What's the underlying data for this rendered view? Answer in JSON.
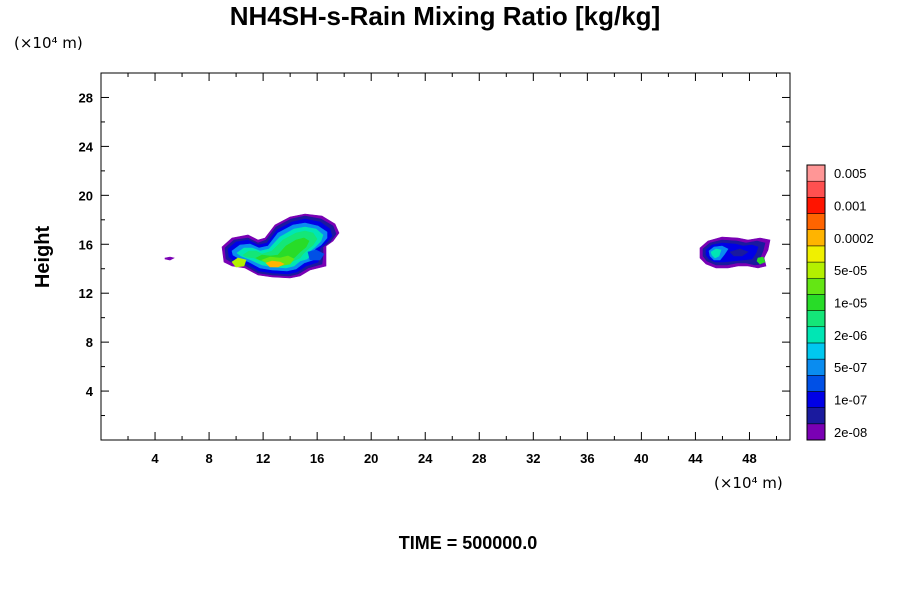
{
  "chart_data": {
    "type": "heatmap",
    "title": "NH4SH-s-Rain Mixing Ratio [kg/kg]",
    "y_units": "(×10⁴ m)",
    "x_units": "(×10⁴ m)",
    "ylabel": "Height",
    "xlabel": "",
    "xlim": [
      0,
      51
    ],
    "ylim": [
      0,
      30
    ],
    "x_ticks": [
      "4",
      "8",
      "12",
      "16",
      "20",
      "24",
      "28",
      "32",
      "36",
      "40",
      "44",
      "48"
    ],
    "x_tick_values": [
      4,
      8,
      12,
      16,
      20,
      24,
      28,
      32,
      36,
      40,
      44,
      48
    ],
    "y_ticks": [
      "4",
      "8",
      "12",
      "16",
      "20",
      "24",
      "28"
    ],
    "y_tick_values": [
      4,
      8,
      12,
      16,
      20,
      24,
      28
    ],
    "footer": "TIME = 500000.0",
    "colorbar": {
      "colors": [
        "#7a00b4",
        "#1a1a9e",
        "#0000e6",
        "#0050e6",
        "#0a8cf0",
        "#00c8f0",
        "#00e6b4",
        "#14e678",
        "#28dc28",
        "#64e614",
        "#b4f000",
        "#f0f000",
        "#ffb400",
        "#ff6400",
        "#ff1400",
        "#ff5050",
        "#ff9696"
      ],
      "labels": [
        "2e-08",
        "1e-07",
        "5e-07",
        "2e-06",
        "1e-05",
        "5e-05",
        "0.0002",
        "0.001",
        "0.005"
      ]
    },
    "features": [
      {
        "x": [
          9.5,
          18.2
        ],
        "y": [
          13.3,
          18.4
        ],
        "peak_level": 12
      },
      {
        "x": [
          44.5,
          49.8
        ],
        "y": [
          13.9,
          16.6
        ],
        "peak_level": 8
      },
      {
        "x": [
          5.0,
          5.4
        ],
        "y": [
          14.7,
          14.9
        ],
        "peak_level": 0
      }
    ]
  }
}
